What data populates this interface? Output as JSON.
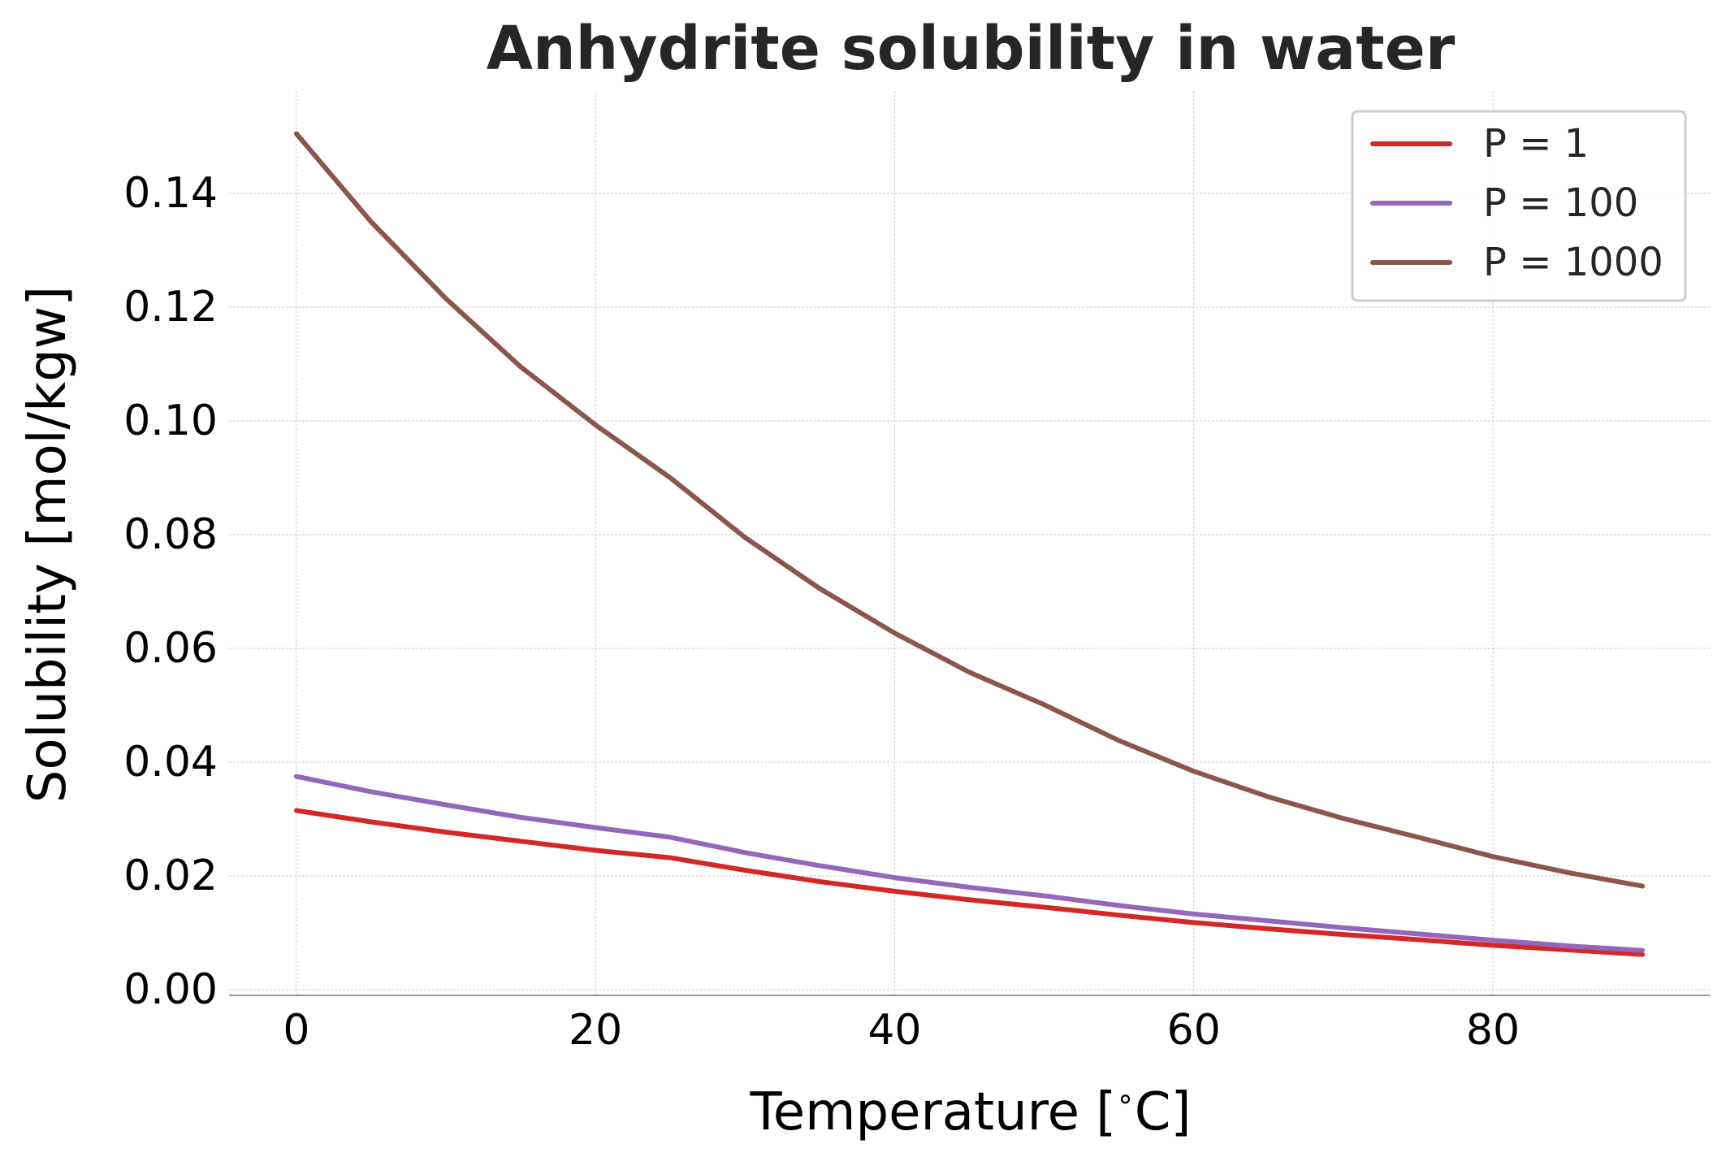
{
  "chart_data": {
    "type": "line",
    "title": "Anhydrite solubility in water",
    "xlabel": "Temperature [∘C]",
    "xlabel_parts": {
      "before": "Temperature [",
      "degree": "∘",
      "after": "C]"
    },
    "ylabel": "Solubility [mol/kgw]",
    "xlim": [
      -4.5,
      94.5
    ],
    "ylim": [
      -0.001,
      0.158
    ],
    "xticks": [
      0,
      20,
      40,
      60,
      80
    ],
    "xtick_labels": [
      "0",
      "20",
      "40",
      "60",
      "80"
    ],
    "yticks": [
      0.0,
      0.02,
      0.04,
      0.06,
      0.08,
      0.1,
      0.12,
      0.14
    ],
    "ytick_labels": [
      "0.00",
      "0.02",
      "0.04",
      "0.06",
      "0.08",
      "0.10",
      "0.12",
      "0.14"
    ],
    "grid": true,
    "legend_position": "top-right",
    "x": [
      0,
      5,
      10,
      15,
      20,
      25,
      30,
      35,
      40,
      45,
      50,
      55,
      60,
      65,
      70,
      75,
      80,
      85,
      90
    ],
    "series": [
      {
        "name": "P = 1",
        "color": "#d62728",
        "values": [
          0.0315,
          0.0295,
          0.0277,
          0.0261,
          0.0245,
          0.0232,
          0.021,
          0.019,
          0.0173,
          0.0158,
          0.0145,
          0.0131,
          0.0118,
          0.0107,
          0.0097,
          0.0088,
          0.0078,
          0.007,
          0.0062
        ]
      },
      {
        "name": "P = 100",
        "color": "#9467bd",
        "values": [
          0.0375,
          0.0348,
          0.0325,
          0.0303,
          0.0285,
          0.0268,
          0.0241,
          0.0218,
          0.0197,
          0.018,
          0.0165,
          0.0148,
          0.0133,
          0.0121,
          0.0109,
          0.0098,
          0.0087,
          0.0077,
          0.0069
        ]
      },
      {
        "name": "P = 1000",
        "color": "#8c564b",
        "values": [
          0.1505,
          0.135,
          0.1215,
          0.1095,
          0.0993,
          0.09,
          0.0795,
          0.0705,
          0.0627,
          0.0558,
          0.0501,
          0.0438,
          0.0384,
          0.0339,
          0.0301,
          0.0268,
          0.0234,
          0.0206,
          0.0182
        ]
      }
    ]
  }
}
